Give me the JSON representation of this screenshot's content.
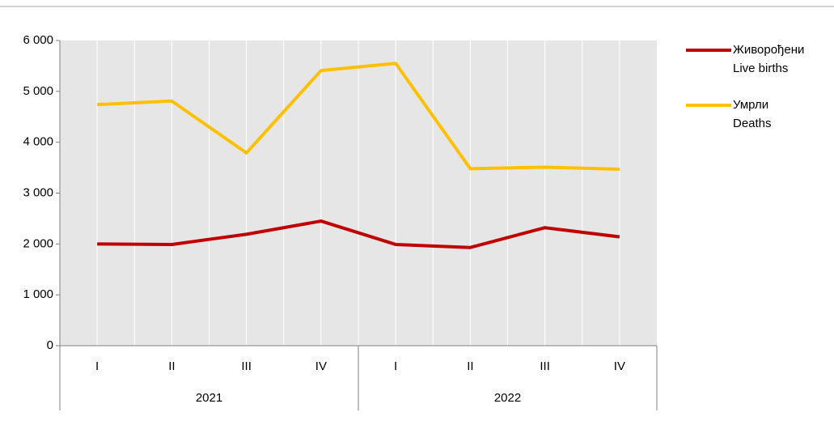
{
  "chart_data": {
    "type": "line",
    "categories": [
      "I",
      "II",
      "III",
      "IV",
      "I",
      "II",
      "III",
      "IV"
    ],
    "groups": [
      "2021",
      "2022"
    ],
    "series": [
      {
        "name": "Живорођени",
        "name_en": "Live births",
        "color": "#c00000",
        "values": [
          2000,
          1990,
          2190,
          2450,
          1990,
          1930,
          2320,
          2140
        ]
      },
      {
        "name": "Умрли",
        "name_en": "Deaths",
        "color": "#ffc000",
        "values": [
          4740,
          4810,
          3790,
          5410,
          5550,
          3480,
          3510,
          3470
        ]
      }
    ],
    "ylim": [
      0,
      6000
    ],
    "yticks": [
      0,
      {
        "value": 1000,
        "label": "1 000"
      },
      {
        "value": 2000,
        "label": "2 000"
      },
      {
        "value": 3000,
        "label": "3 000"
      },
      {
        "value": 4000,
        "label": "4 000"
      },
      {
        "value": 5000,
        "label": "5 000"
      },
      {
        "value": 6000,
        "label": "6 000"
      }
    ],
    "grid": true
  }
}
